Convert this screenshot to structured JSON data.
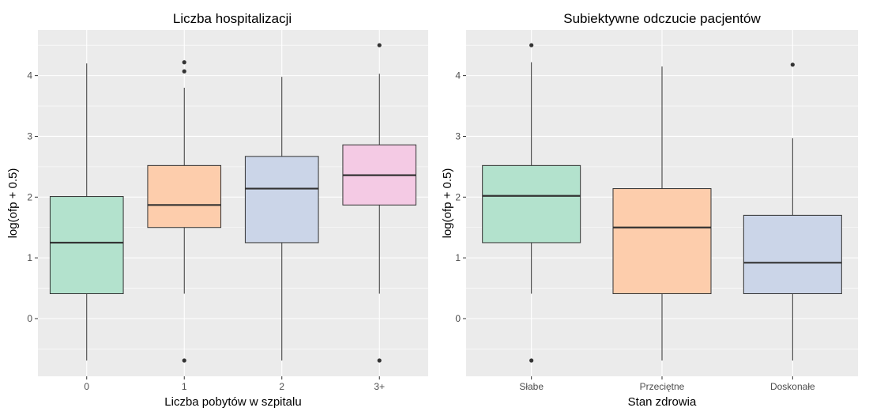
{
  "chart_data": [
    {
      "type": "boxplot",
      "title": "Liczba hospitalizacji",
      "xlabel": "Liczba pobytów w szpitalu",
      "ylabel": "log(ofp + 0.5)",
      "ylim": [
        -0.95,
        4.75
      ],
      "yticks": [
        0,
        1,
        2,
        3,
        4
      ],
      "ytick_labels": [
        "0",
        "1",
        "2",
        "3",
        "4"
      ],
      "grid": true,
      "categories": [
        "0",
        "1",
        "2",
        "3+"
      ],
      "colors": [
        "#b3e2cd",
        "#fdcdac",
        "#cbd5e8",
        "#f4cae4"
      ],
      "boxes": [
        {
          "category": "0",
          "whisker_low": -0.69,
          "q1": 0.41,
          "median": 1.25,
          "q3": 2.01,
          "whisker_high": 4.2,
          "outliers": []
        },
        {
          "category": "1",
          "whisker_low": 0.41,
          "q1": 1.5,
          "median": 1.87,
          "q3": 2.52,
          "whisker_high": 3.8,
          "outliers": [
            -0.69,
            4.07,
            4.22
          ]
        },
        {
          "category": "2",
          "whisker_low": -0.69,
          "q1": 1.25,
          "median": 2.14,
          "q3": 2.67,
          "whisker_high": 3.98,
          "outliers": []
        },
        {
          "category": "3+",
          "whisker_low": 0.41,
          "q1": 1.87,
          "median": 2.36,
          "q3": 2.86,
          "whisker_high": 4.03,
          "outliers": [
            -0.69,
            4.5
          ]
        }
      ]
    },
    {
      "type": "boxplot",
      "title": "Subiektywne odczucie pacjentów",
      "xlabel": "Stan zdrowia",
      "ylabel": "log(ofp + 0.5)",
      "ylim": [
        -0.95,
        4.75
      ],
      "yticks": [
        0,
        1,
        2,
        3,
        4
      ],
      "ytick_labels": [
        "0",
        "1",
        "2",
        "3",
        "4"
      ],
      "grid": true,
      "categories": [
        "Słabe",
        "Przeciętne",
        "Doskonałe"
      ],
      "colors": [
        "#b3e2cd",
        "#fdcdac",
        "#cbd5e8"
      ],
      "boxes": [
        {
          "category": "Słabe",
          "whisker_low": 0.41,
          "q1": 1.25,
          "median": 2.02,
          "q3": 2.52,
          "whisker_high": 4.22,
          "outliers": [
            -0.69,
            4.5
          ]
        },
        {
          "category": "Przeciętne",
          "whisker_low": -0.69,
          "q1": 0.41,
          "median": 1.5,
          "q3": 2.14,
          "whisker_high": 4.15,
          "outliers": []
        },
        {
          "category": "Doskonałe",
          "whisker_low": -0.69,
          "q1": 0.41,
          "median": 0.92,
          "q3": 1.7,
          "whisker_high": 2.97,
          "outliers": [
            4.18
          ]
        }
      ]
    }
  ]
}
